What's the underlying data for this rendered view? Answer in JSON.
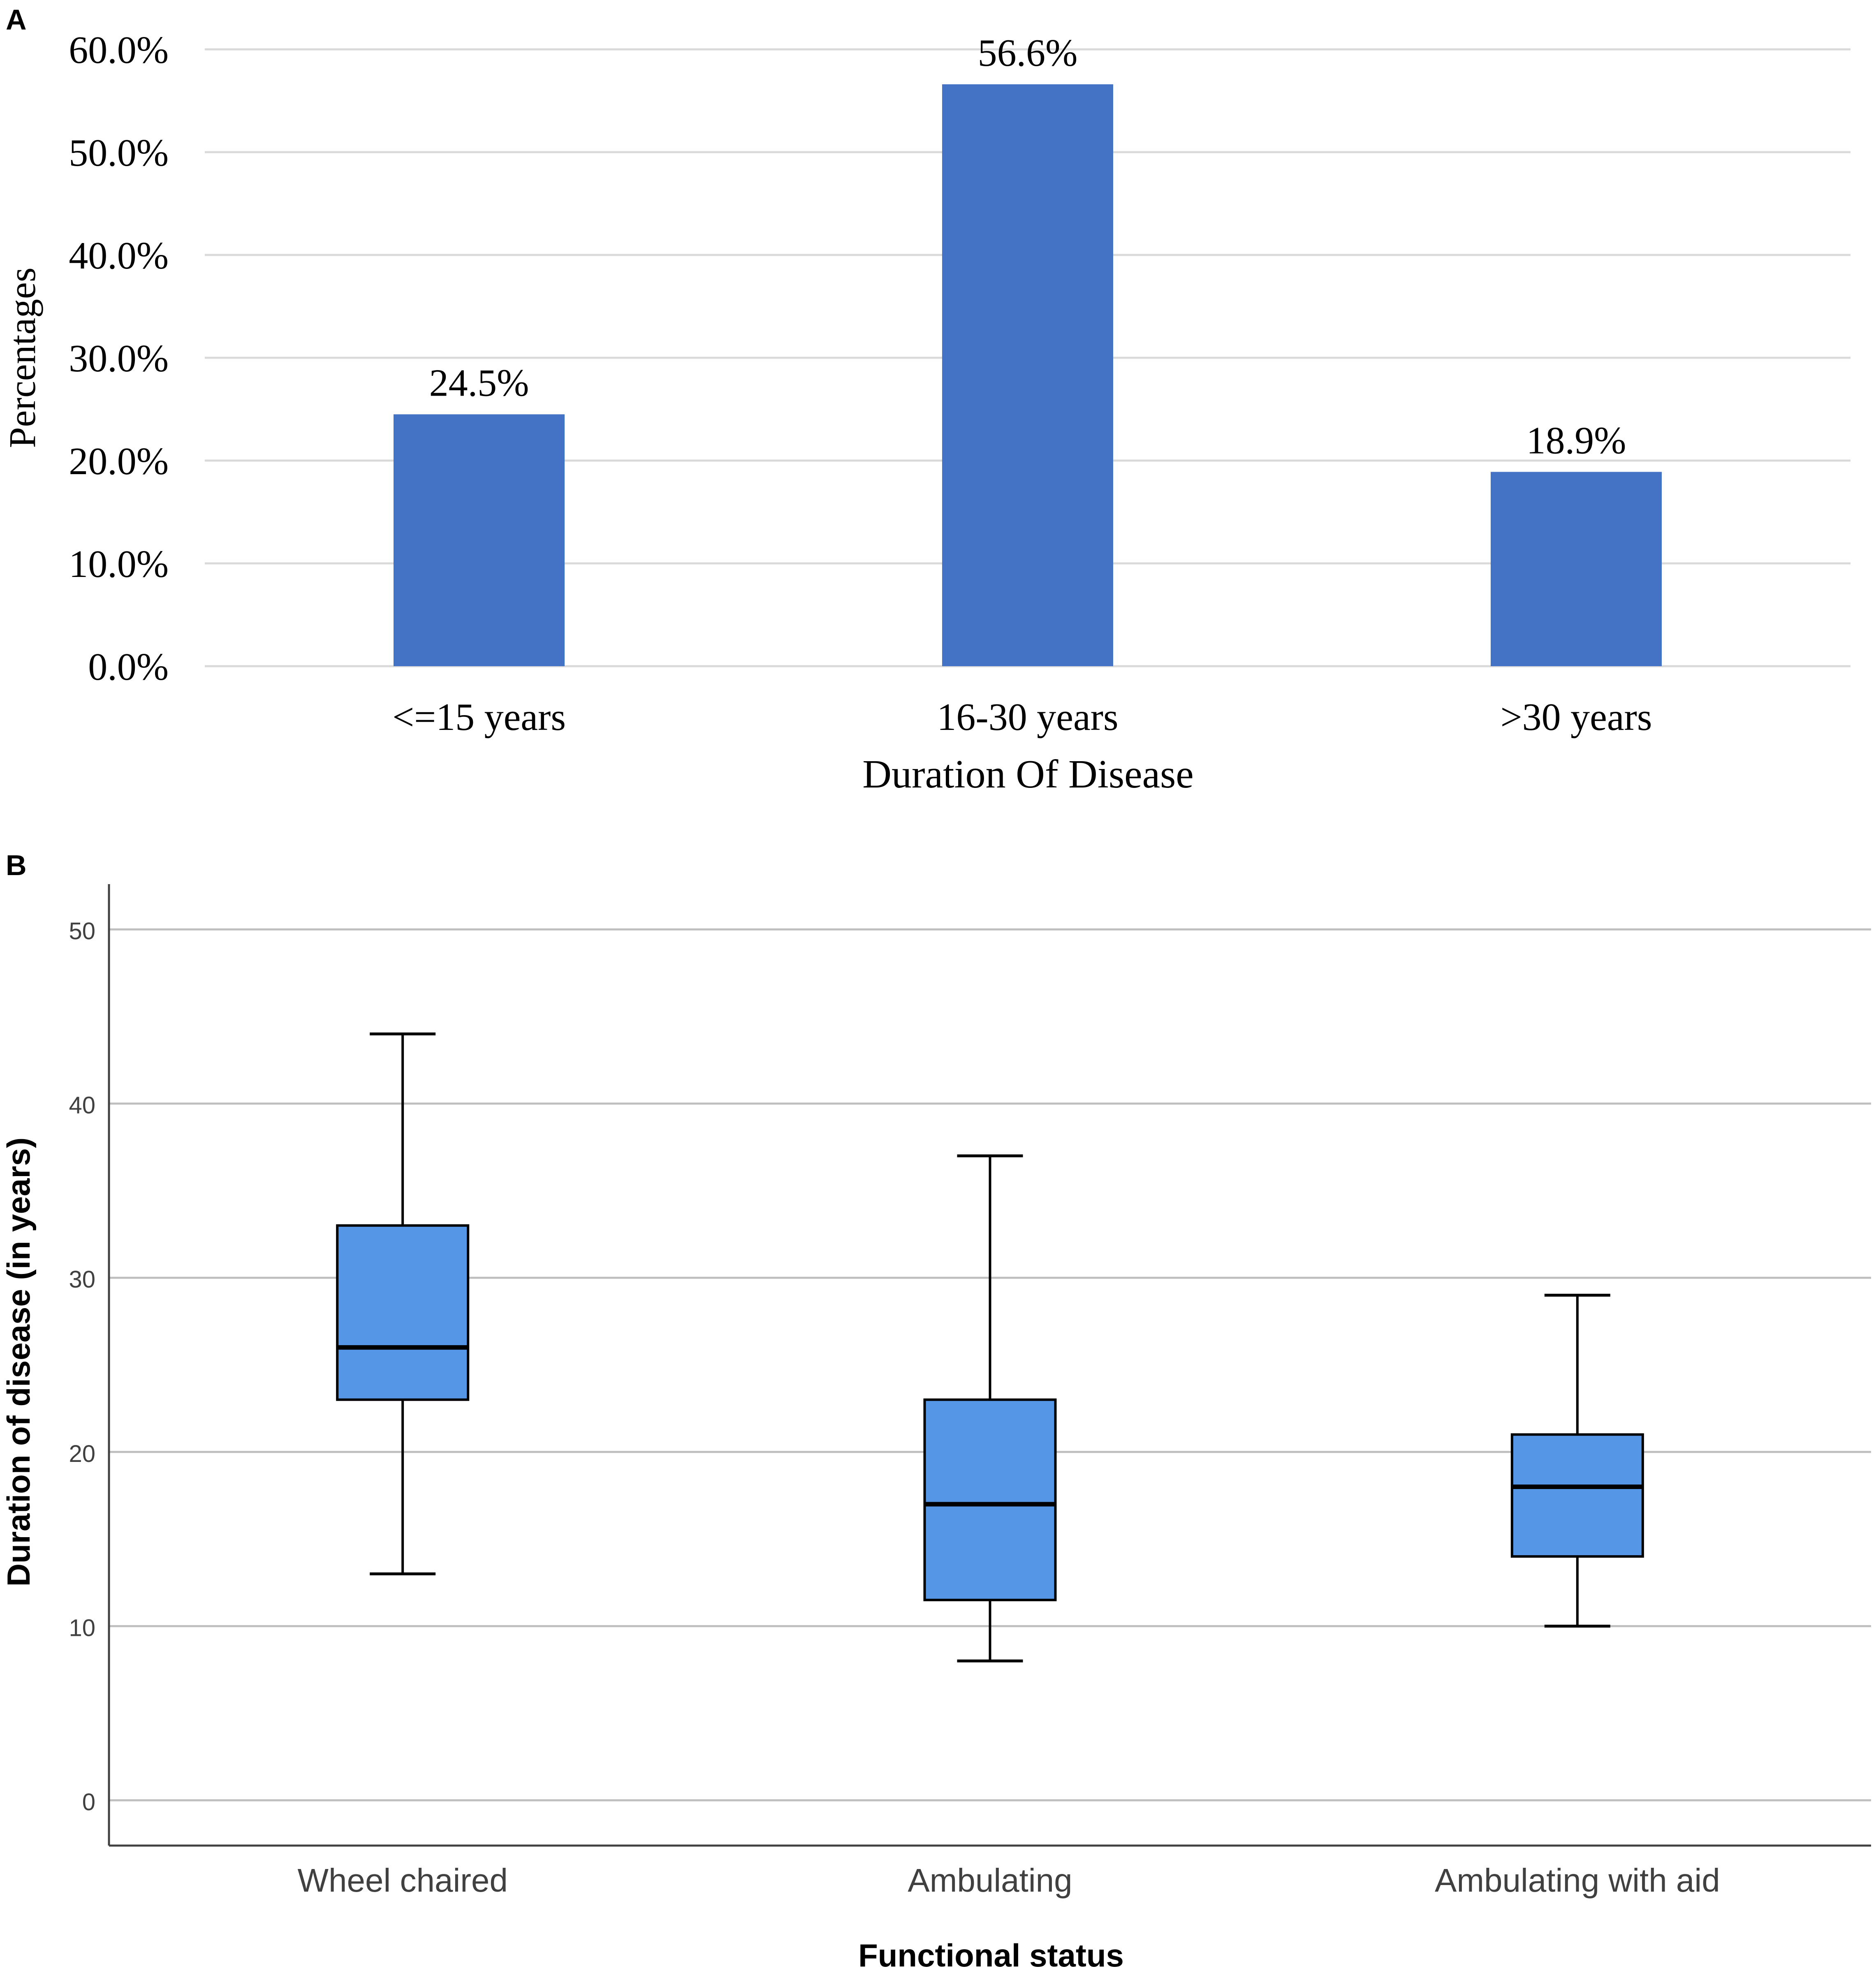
{
  "panels": {
    "a": {
      "label": "A"
    },
    "b": {
      "label": "B"
    }
  },
  "colors": {
    "bar": "#4472C4",
    "box": "#5596E6",
    "grid": "#D9D9D9",
    "grid_b": "#BFBFBF",
    "ink": "#000000",
    "axis": "#404040"
  },
  "chart_data": [
    {
      "id": "panel-a",
      "type": "bar",
      "title": "",
      "categories": [
        "<=15 years",
        "16-30 years",
        ">30 years"
      ],
      "values": [
        24.5,
        56.6,
        18.9
      ],
      "value_labels": [
        "24.5%",
        "56.6%",
        "18.9%"
      ],
      "xlabel": "Duration Of Disease",
      "ylabel": "Percentages",
      "ylim": [
        0,
        60
      ],
      "yticks": [
        0,
        10,
        20,
        30,
        40,
        50,
        60
      ],
      "ytick_labels": [
        "0.0%",
        "10.0%",
        "20.0%",
        "30.0%",
        "40.0%",
        "50.0%",
        "60.0%"
      ],
      "grid": true
    },
    {
      "id": "panel-b",
      "type": "box",
      "title": "",
      "categories": [
        "Wheel chaired",
        "Ambulating",
        "Ambulating with aid"
      ],
      "boxes": [
        {
          "min": 13,
          "q1": 23,
          "median": 26,
          "q3": 33,
          "max": 44
        },
        {
          "min": 8,
          "q1": 11.5,
          "median": 17,
          "q3": 23,
          "max": 37
        },
        {
          "min": 10,
          "q1": 14,
          "median": 18,
          "q3": 21,
          "max": 29
        }
      ],
      "xlabel": "Functional status",
      "ylabel": "Duration of disease (in years)",
      "ylim": [
        -2.6,
        52.6
      ],
      "yticks": [
        0,
        10,
        20,
        30,
        40,
        50
      ],
      "ytick_labels": [
        "0",
        "10",
        "20",
        "30",
        "40",
        "50"
      ],
      "grid": true
    }
  ]
}
